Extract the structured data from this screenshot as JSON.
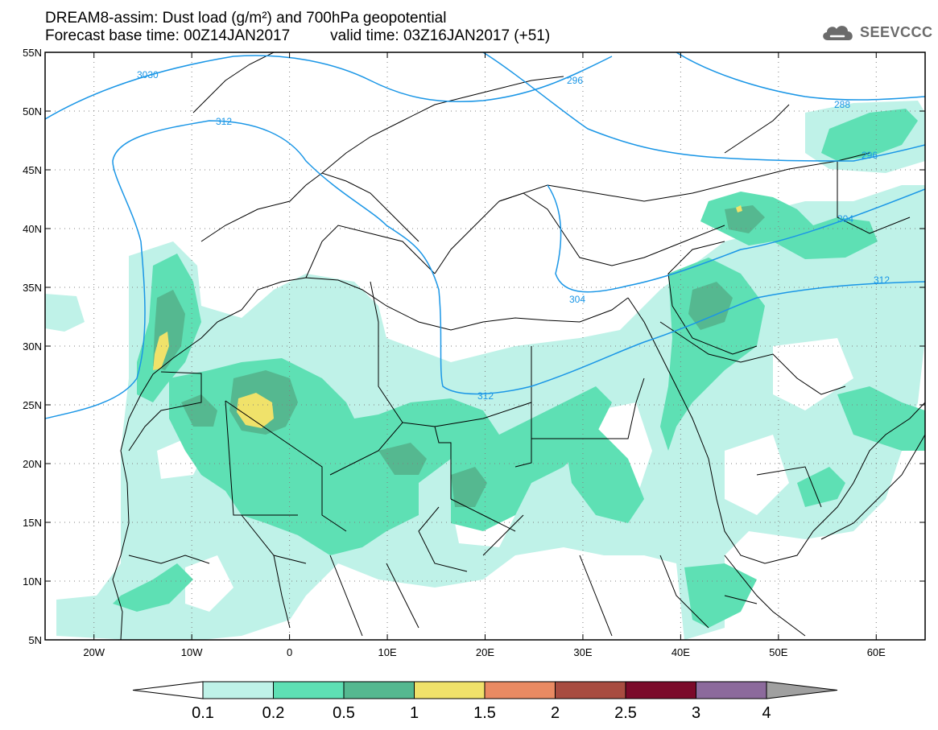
{
  "title": {
    "line1": "DREAM8-assim: Dust load (g/m²) and 700hPa geopotential",
    "base_time": "Forecast base time: 00Z14JAN2017",
    "valid_time": "valid time: 03Z16JAN2017 (+51)"
  },
  "logo": {
    "text": "SEEVCCC",
    "icon": "cloud-icon"
  },
  "map": {
    "lon_range": [
      -25,
      65
    ],
    "lat_range": [
      5,
      55
    ],
    "lon_ticks": [
      {
        "lon": -20,
        "label": "20W"
      },
      {
        "lon": -10,
        "label": "10W"
      },
      {
        "lon": 0,
        "label": "0"
      },
      {
        "lon": 10,
        "label": "10E"
      },
      {
        "lon": 20,
        "label": "20E"
      },
      {
        "lon": 30,
        "label": "30E"
      },
      {
        "lon": 40,
        "label": "40E"
      },
      {
        "lon": 50,
        "label": "50E"
      },
      {
        "lon": 60,
        "label": "60E"
      }
    ],
    "lat_ticks": [
      {
        "lat": 5,
        "label": "5N"
      },
      {
        "lat": 10,
        "label": "10N"
      },
      {
        "lat": 15,
        "label": "15N"
      },
      {
        "lat": 20,
        "label": "20N"
      },
      {
        "lat": 25,
        "label": "25N"
      },
      {
        "lat": 30,
        "label": "30N"
      },
      {
        "lat": 35,
        "label": "35N"
      },
      {
        "lat": 40,
        "label": "40N"
      },
      {
        "lat": 45,
        "label": "45N"
      },
      {
        "lat": 50,
        "label": "50N"
      },
      {
        "lat": 55,
        "label": "55N"
      }
    ],
    "contour_labels": [
      "288",
      "296",
      "304",
      "312",
      "3030",
      "304",
      "312",
      "304",
      "312",
      "296",
      "288"
    ]
  },
  "colorbar": {
    "bounds": [
      "0.1",
      "0.2",
      "0.5",
      "1",
      "1.5",
      "2",
      "2.5",
      "3",
      "4"
    ],
    "colors": [
      "#bff2e8",
      "#5ee0b4",
      "#55b890",
      "#f0e26a",
      "#e98a62",
      "#a84c40",
      "#7b0a2a",
      "#8c6a9c"
    ],
    "under_color": "#ffffff",
    "over_color": "#a0a0a0"
  },
  "colors": {
    "contour": "#1a96e6",
    "dust_01": "#bff2e8",
    "dust_02": "#5ee0b4",
    "dust_05": "#55b890",
    "dust_1": "#f0e26a"
  }
}
